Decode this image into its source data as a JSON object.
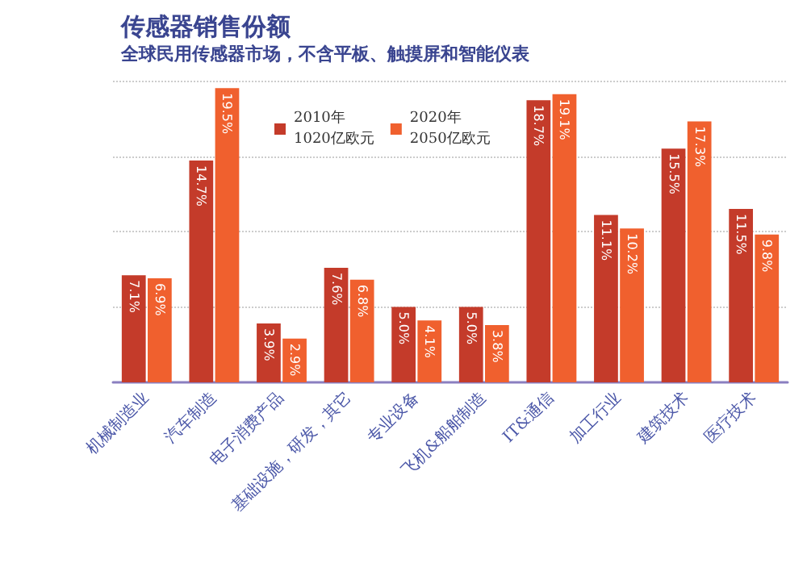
{
  "chart_data": {
    "type": "bar",
    "title": "传感器销售份额",
    "subtitle": "全球民用传感器市场，不含平板、触摸屏和智能仪表",
    "categories": [
      "机械制造业",
      "汽车制造",
      "电子消费产品",
      "基础设施，研发，其它",
      "专业设备",
      "飞机&船舶制造",
      "IT&通信",
      "加工行业",
      "建筑技术",
      "医疗技术"
    ],
    "series": [
      {
        "name": "2010年\n1020亿欧元",
        "color": "#c43b2a",
        "values": [
          7.1,
          14.7,
          3.9,
          7.6,
          5.0,
          5.0,
          18.7,
          11.1,
          15.5,
          11.5
        ],
        "value_labels": [
          "7.1%",
          "14.7%",
          "3.9%",
          "7.6%",
          "5.0%",
          "5.0%",
          "18.7%",
          "11.1%",
          "15.5%",
          "11.5%"
        ]
      },
      {
        "name": "2020年\n2050亿欧元",
        "color": "#f0602e",
        "values": [
          6.9,
          19.5,
          2.9,
          6.8,
          4.1,
          3.8,
          19.1,
          10.2,
          17.3,
          9.8
        ],
        "value_labels": [
          "6.9%",
          "19.5%",
          "2.9%",
          "6.8%",
          "4.1%",
          "3.8%",
          "19.1%",
          "10.2%",
          "17.3%",
          "9.8%"
        ]
      }
    ],
    "ylim": [
      0,
      20
    ],
    "yticks": [
      {
        "value": 5,
        "label": null
      },
      {
        "value": 10,
        "label": null
      },
      {
        "value": 15,
        "label": null
      },
      {
        "value": 20,
        "label": null
      }
    ],
    "tick_labels": "x",
    "grid": "y",
    "legend": "top"
  }
}
